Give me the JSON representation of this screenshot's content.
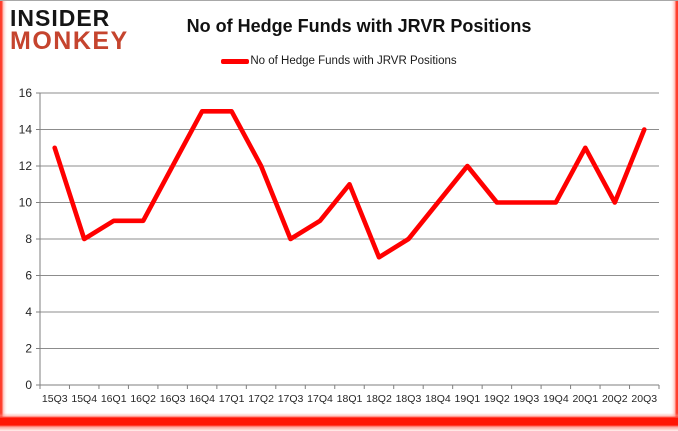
{
  "logo": {
    "line1": "INSIDER",
    "line2": "MONKEY",
    "line2_color": "#C5442E"
  },
  "chart_data": {
    "type": "line",
    "title": "No of Hedge Funds with JRVR Positions",
    "xlabel": "",
    "ylabel": "",
    "categories": [
      "15Q3",
      "15Q4",
      "16Q1",
      "16Q2",
      "16Q3",
      "16Q4",
      "17Q1",
      "17Q2",
      "17Q3",
      "17Q4",
      "18Q1",
      "18Q2",
      "18Q3",
      "18Q4",
      "19Q1",
      "19Q2",
      "19Q3",
      "19Q4",
      "20Q1",
      "20Q2",
      "20Q3"
    ],
    "series": [
      {
        "name": "No of Hedge Funds with JRVR Positions",
        "color": "#FF0000",
        "values": [
          13,
          8,
          9,
          9,
          12,
          15,
          15,
          12,
          8,
          9,
          11,
          7,
          8,
          10,
          12,
          10,
          10,
          10,
          13,
          10,
          14
        ]
      }
    ],
    "ylim": [
      0,
      16
    ],
    "yticks": [
      0,
      2,
      4,
      6,
      8,
      10,
      12,
      14,
      16
    ],
    "grid": "horizontal",
    "legend_position": "top-center"
  },
  "colors": {
    "grid": "#8C8C8C",
    "axis": "#7F7F7F",
    "frame_red": "#FF1505",
    "top_border": "#A8A8A8"
  }
}
